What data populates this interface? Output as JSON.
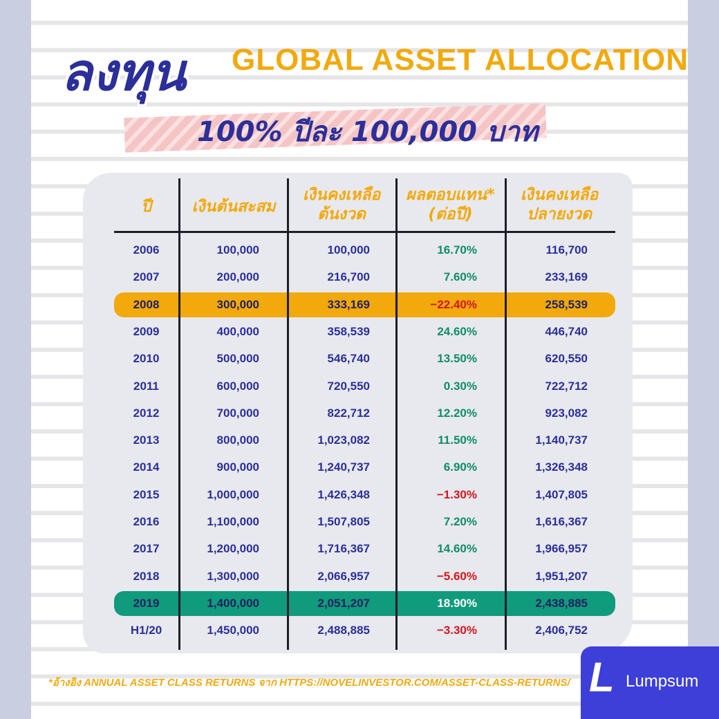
{
  "header": {
    "title_thai": "ลงทุน",
    "title_en": "GLOBAL ASSET ALLOCATION",
    "subtitle": "100% ปีละ 100,000 บาท"
  },
  "table": {
    "headers": [
      [
        "ปี"
      ],
      [
        "เงินต้นสะสม"
      ],
      [
        "เงินคงเหลือ",
        "ต้นงวด"
      ],
      [
        "ผลตอบแทน*",
        "(ต่อปี)"
      ],
      [
        "เงินคงเหลือ",
        "ปลายงวด"
      ]
    ],
    "rows": [
      [
        "2006",
        "100,000",
        "100,000",
        "16.70%",
        "116,700"
      ],
      [
        "2007",
        "200,000",
        "216,700",
        "7.60%",
        "233,169"
      ],
      [
        "2008",
        "300,000",
        "333,169",
        "−22.40%",
        "258,539"
      ],
      [
        "2009",
        "400,000",
        "358,539",
        "24.60%",
        "446,740"
      ],
      [
        "2010",
        "500,000",
        "546,740",
        "13.50%",
        "620,550"
      ],
      [
        "2011",
        "600,000",
        "720,550",
        "0.30%",
        "722,712"
      ],
      [
        "2012",
        "700,000",
        "822,712",
        "12.20%",
        "923,082"
      ],
      [
        "2013",
        "800,000",
        "1,023,082",
        "11.50%",
        "1,140,737"
      ],
      [
        "2014",
        "900,000",
        "1,240,737",
        "6.90%",
        "1,326,348"
      ],
      [
        "2015",
        "1,000,000",
        "1,426,348",
        "−1.30%",
        "1,407,805"
      ],
      [
        "2016",
        "1,100,000",
        "1,507,805",
        "7.20%",
        "1,616,367"
      ],
      [
        "2017",
        "1,200,000",
        "1,716,367",
        "14.60%",
        "1,966,957"
      ],
      [
        "2018",
        "1,300,000",
        "2,066,957",
        "−5.60%",
        "1,951,207"
      ],
      [
        "2019",
        "1,400,000",
        "2,051,207",
        "18.90%",
        "2,438,885"
      ],
      [
        "H1/20",
        "1,450,000",
        "2,488,885",
        "−3.30%",
        "2,406,752"
      ]
    ],
    "row_highlights": {
      "2": "#f2a90c",
      "13": "#109b7c"
    },
    "return_colors": {
      "positive": "#0f8c6b",
      "negative": "#d3161e"
    }
  },
  "footnote": "*อ้างอิง ANNUAL ASSET CLASS RETURNS จาก HTTPS://NOVELINVESTOR.COM/ASSET-CLASS-RETURNS/",
  "logo": "Lumpsum"
}
